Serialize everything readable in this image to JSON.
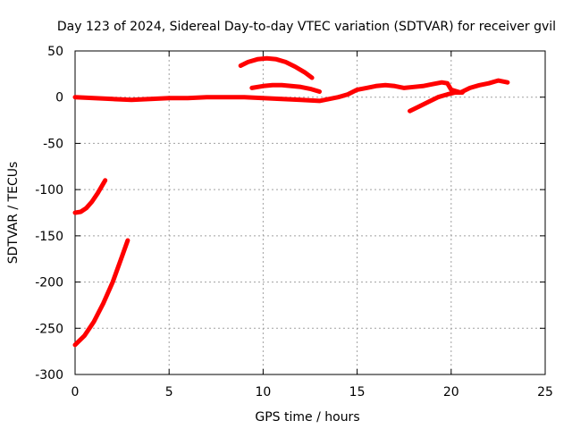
{
  "chart_data": {
    "type": "line",
    "title": "Day 123 of 2024, Sidereal Day-to-day VTEC variation (SDTVAR) for receiver gvil",
    "xlabel": "GPS time / hours",
    "ylabel": "SDTVAR / TECUs",
    "xlim": [
      0,
      25
    ],
    "ylim": [
      -300,
      50
    ],
    "xticks": [
      "0",
      "5",
      "10",
      "15",
      "20",
      "25"
    ],
    "yticks": [
      "50",
      "0",
      "-50",
      "-100",
      "-150",
      "-200",
      "-250",
      "-300"
    ],
    "grid": true,
    "series_color": "#ff0000",
    "series": [
      {
        "x": [
          0,
          1,
          2,
          3,
          4,
          5,
          6,
          7,
          8,
          9,
          10,
          11,
          12,
          13,
          13.5,
          14,
          14.5,
          15,
          15.5,
          16,
          16.5,
          17,
          17.5,
          18,
          18.5,
          19,
          19.5,
          19.8,
          20,
          20.5,
          21,
          21.5,
          22,
          22.5,
          23
        ],
        "y": [
          0,
          -1,
          -2,
          -3,
          -2,
          -1,
          -1,
          0,
          0,
          0,
          -1,
          -2,
          -3,
          -4,
          -2,
          0,
          3,
          8,
          10,
          12,
          13,
          12,
          10,
          11,
          12,
          14,
          16,
          15,
          8,
          5,
          10,
          13,
          15,
          18,
          16
        ]
      },
      {
        "x": [
          0,
          0.3,
          0.6,
          0.9,
          1.2,
          1.6
        ],
        "y": [
          -125,
          -124,
          -120,
          -113,
          -104,
          -90
        ]
      },
      {
        "x": [
          0,
          0.5,
          1,
          1.5,
          2,
          2.5,
          2.8
        ],
        "y": [
          -268,
          -258,
          -243,
          -223,
          -200,
          -172,
          -155
        ]
      },
      {
        "x": [
          8.8,
          9.2,
          9.7,
          10.2,
          10.7,
          11.2,
          11.7,
          12.2,
          12.6
        ],
        "y": [
          34,
          38,
          41,
          42,
          41,
          38,
          33,
          27,
          21
        ]
      },
      {
        "x": [
          9.4,
          10,
          10.5,
          11,
          11.5,
          12,
          12.5,
          13
        ],
        "y": [
          10,
          12,
          13,
          13,
          12,
          11,
          9,
          6
        ]
      },
      {
        "x": [
          17.8,
          18.3,
          18.8,
          19.3,
          19.8,
          20.2,
          20.6
        ],
        "y": [
          -15,
          -10,
          -5,
          0,
          3,
          5,
          5
        ]
      }
    ]
  }
}
